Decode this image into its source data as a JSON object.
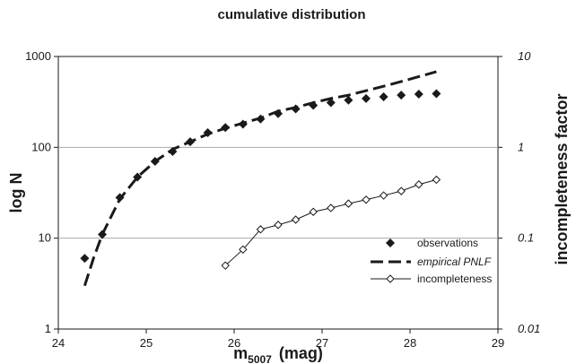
{
  "chart_data": {
    "type": "scatter",
    "title": "cumulative distribution",
    "xlabel_main": "m",
    "xlabel_sub": "5007",
    "xlabel_unit": "(mag)",
    "ylabel": "log N",
    "y2label": "incompleteness factor",
    "xlim": [
      24,
      29
    ],
    "xticks": [
      "24",
      "25",
      "26",
      "27",
      "28",
      "29"
    ],
    "yscale": "log",
    "ylim": [
      1,
      1000
    ],
    "yticks": [
      "1",
      "10",
      "100",
      "1000"
    ],
    "y2scale": "log",
    "y2lim": [
      0.01,
      10
    ],
    "y2ticks": [
      "0.01",
      "0.1",
      "1",
      "10"
    ],
    "grid": "horizontal",
    "legend_position": "lower-right",
    "series": [
      {
        "name": "observations",
        "style": "markers",
        "marker": "filled-diamond",
        "axis": "left",
        "x": [
          24.3,
          24.5,
          24.7,
          24.9,
          25.1,
          25.3,
          25.5,
          25.7,
          25.9,
          26.1,
          26.3,
          26.5,
          26.7,
          26.9,
          27.1,
          27.3,
          27.5,
          27.7,
          27.9,
          28.1,
          28.3
        ],
        "y": [
          6,
          11,
          28,
          47,
          70,
          90,
          115,
          145,
          165,
          180,
          205,
          235,
          265,
          290,
          310,
          330,
          345,
          360,
          375,
          385,
          390
        ]
      },
      {
        "name": "empirical PNLF",
        "style": "dashed-line",
        "axis": "left",
        "x": [
          24.3,
          24.4,
          24.5,
          24.7,
          24.9,
          25.1,
          25.3,
          25.5,
          25.7,
          25.9,
          26.1,
          26.3,
          26.5,
          26.7,
          26.9,
          27.1,
          27.3,
          27.5,
          27.7,
          27.9,
          28.1,
          28.3
        ],
        "y": [
          3,
          6,
          11,
          27,
          47,
          70,
          95,
          115,
          140,
          162,
          185,
          210,
          250,
          275,
          310,
          345,
          375,
          420,
          470,
          530,
          600,
          680
        ]
      },
      {
        "name": "incompleteness",
        "style": "line-open-diamond",
        "axis": "right",
        "x": [
          25.9,
          26.1,
          26.3,
          26.5,
          26.7,
          26.9,
          27.1,
          27.3,
          27.5,
          27.7,
          27.9,
          28.1,
          28.3
        ],
        "y": [
          0.05,
          0.075,
          0.125,
          0.14,
          0.16,
          0.195,
          0.215,
          0.24,
          0.265,
          0.295,
          0.33,
          0.39,
          0.44
        ]
      }
    ]
  },
  "colors": {
    "ink": "#1a1a1a",
    "grid": "#aaaaaa",
    "background": "#ffffff"
  }
}
